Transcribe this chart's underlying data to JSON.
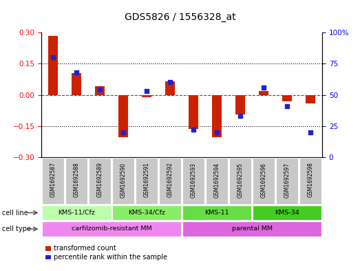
{
  "title": "GDS5826 / 1556328_at",
  "samples": [
    "GSM1692587",
    "GSM1692588",
    "GSM1692589",
    "GSM1692590",
    "GSM1692591",
    "GSM1692592",
    "GSM1692593",
    "GSM1692594",
    "GSM1692595",
    "GSM1692596",
    "GSM1692597",
    "GSM1692598"
  ],
  "transformed_count": [
    0.285,
    0.105,
    0.04,
    -0.205,
    -0.01,
    0.065,
    -0.165,
    -0.205,
    -0.095,
    0.02,
    -0.03,
    -0.04
  ],
  "percentile_rank": [
    80,
    68,
    54,
    20,
    53,
    60,
    22,
    20,
    33,
    56,
    41,
    20
  ],
  "ylim_left": [
    -0.3,
    0.3
  ],
  "ylim_right": [
    0,
    100
  ],
  "yticks_left": [
    -0.3,
    -0.15,
    0,
    0.15,
    0.3
  ],
  "yticks_right": [
    0,
    25,
    50,
    75,
    100
  ],
  "hlines_dotted": [
    0.15,
    -0.15
  ],
  "bar_color": "#cc2200",
  "dot_color": "#2222cc",
  "zero_line_color": "#cc2200",
  "cell_line_groups": [
    {
      "label": "KMS-11/Cfz",
      "start": 0,
      "end": 3,
      "color": "#bbffaa"
    },
    {
      "label": "KMS-34/Cfz",
      "start": 3,
      "end": 6,
      "color": "#88ee66"
    },
    {
      "label": "KMS-11",
      "start": 6,
      "end": 9,
      "color": "#66dd44"
    },
    {
      "label": "KMS-34",
      "start": 9,
      "end": 12,
      "color": "#44cc22"
    }
  ],
  "cell_type_groups": [
    {
      "label": "carfilzomib-resistant MM",
      "start": 0,
      "end": 6,
      "color": "#ee88ee"
    },
    {
      "label": "parental MM",
      "start": 6,
      "end": 12,
      "color": "#dd66dd"
    }
  ],
  "cell_line_label": "cell line",
  "cell_type_label": "cell type",
  "legend_items": [
    {
      "label": "transformed count",
      "color": "#cc2200"
    },
    {
      "label": "percentile rank within the sample",
      "color": "#2222cc"
    }
  ],
  "bg_color": "#ffffff",
  "sample_box_color": "#c8c8c8"
}
